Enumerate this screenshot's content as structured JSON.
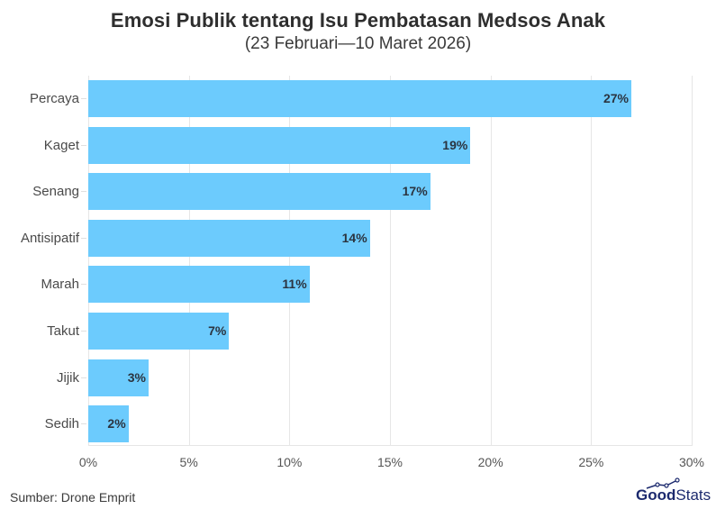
{
  "header": {
    "title": "Emosi Publik tentang Isu Pembatasan Medsos Anak",
    "subtitle": "(23 Februari—10 Maret 2026)"
  },
  "footer": {
    "source": "Sumber: Drone Emprit",
    "logo_bold": "Good",
    "logo_light": "Stats"
  },
  "colors": {
    "bar": "#6ccbfd",
    "label": "#2b3440",
    "grid": "#e6e6e6"
  },
  "chart_data": {
    "type": "bar",
    "orientation": "horizontal",
    "title": "Emosi Publik tentang Isu Pembatasan Medsos Anak",
    "subtitle": "(23 Februari—10 Maret 2026)",
    "categories": [
      "Percaya",
      "Kaget",
      "Senang",
      "Antisipatif",
      "Marah",
      "Takut",
      "Jijik",
      "Sedih"
    ],
    "values": [
      27,
      19,
      17,
      14,
      11,
      7,
      3,
      2
    ],
    "value_labels": [
      "27%",
      "19%",
      "17%",
      "14%",
      "11%",
      "7%",
      "3%",
      "2%"
    ],
    "xlabel": "",
    "ylabel": "",
    "xlim": [
      0,
      30
    ],
    "xticks": [
      0,
      5,
      10,
      15,
      20,
      25,
      30
    ],
    "xtick_labels": [
      "0%",
      "5%",
      "10%",
      "15%",
      "20%",
      "25%",
      "30%"
    ],
    "grid": "vertical",
    "legend": "none",
    "source": "Sumber: Drone Emprit"
  }
}
